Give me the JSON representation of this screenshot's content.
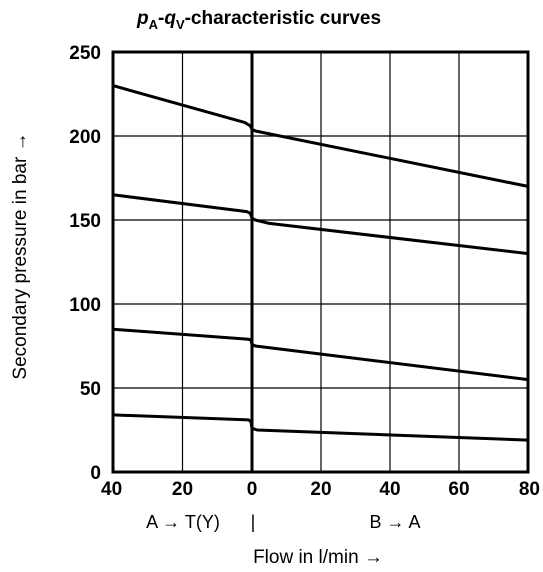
{
  "chart_data": {
    "type": "line",
    "title": {
      "p": "p",
      "p_sub": "A",
      "sep": "-",
      "q": "q",
      "q_sub": "V",
      "rest": "-characteristic curves"
    },
    "ylabel": "Secondary pressure in bar →",
    "xlabel": "Flow in l/min →",
    "region_labels": {
      "left": "A → T(Y)",
      "divider": "|",
      "right": "B → A"
    },
    "ylim": [
      0,
      250
    ],
    "yticks": [
      "0",
      "50",
      "100",
      "150",
      "200",
      "250"
    ],
    "xlim": [
      -40,
      80
    ],
    "xticks": [
      {
        "value": -40,
        "label": "40"
      },
      {
        "value": -20,
        "label": "20"
      },
      {
        "value": 0,
        "label": "0"
      },
      {
        "value": 20,
        "label": "20"
      },
      {
        "value": 40,
        "label": "40"
      },
      {
        "value": 60,
        "label": "60"
      },
      {
        "value": 80,
        "label": "80"
      }
    ],
    "grid": true,
    "series": [
      {
        "points": [
          [
            -40,
            230
          ],
          [
            -2,
            208
          ],
          [
            -0.5,
            206
          ],
          [
            0,
            204
          ],
          [
            1,
            203
          ],
          [
            80,
            170
          ]
        ]
      },
      {
        "points": [
          [
            -40,
            165
          ],
          [
            -1.5,
            155
          ],
          [
            -0.5,
            154
          ],
          [
            0,
            151
          ],
          [
            1,
            150
          ],
          [
            5,
            148
          ],
          [
            80,
            130
          ]
        ]
      },
      {
        "points": [
          [
            -40,
            85
          ],
          [
            -1,
            79
          ],
          [
            -0.3,
            78.5
          ],
          [
            0,
            76
          ],
          [
            1,
            75
          ],
          [
            80,
            55
          ]
        ]
      },
      {
        "points": [
          [
            -40,
            34
          ],
          [
            -1,
            31
          ],
          [
            -0.3,
            30
          ],
          [
            0,
            26
          ],
          [
            1.5,
            25
          ],
          [
            80,
            19
          ]
        ]
      }
    ]
  }
}
